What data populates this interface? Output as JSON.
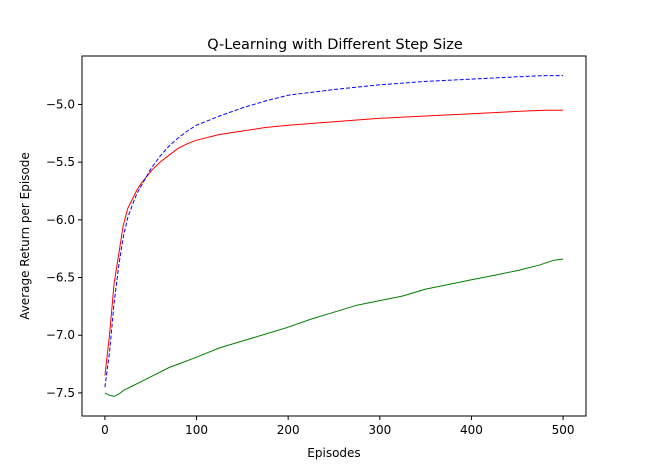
{
  "chart_data": {
    "type": "line",
    "title": "Q-Learning with Different Step Size",
    "xlabel": "Episodes",
    "ylabel": "Average Return per Episode",
    "xlim": [
      -25,
      525
    ],
    "ylim": [
      -7.7,
      -4.58
    ],
    "xticks": [
      0,
      100,
      200,
      300,
      400,
      500
    ],
    "yticks": [
      -7.5,
      -7.0,
      -6.5,
      -6.0,
      -5.5,
      -5.0
    ],
    "ytick_labels": [
      "−7.5",
      "−7.0",
      "−6.5",
      "−6.0",
      "−5.5",
      "−5.0"
    ],
    "grid": false,
    "legend": "none",
    "series": [
      {
        "color": "#ff0000",
        "style": "solid",
        "x": [
          0,
          5,
          10,
          15,
          20,
          25,
          30,
          35,
          40,
          50,
          60,
          70,
          80,
          90,
          100,
          125,
          150,
          175,
          200,
          250,
          300,
          350,
          400,
          450,
          480,
          500
        ],
        "y": [
          -7.35,
          -7.0,
          -6.55,
          -6.3,
          -6.05,
          -5.9,
          -5.82,
          -5.74,
          -5.68,
          -5.58,
          -5.5,
          -5.44,
          -5.38,
          -5.34,
          -5.31,
          -5.26,
          -5.23,
          -5.2,
          -5.18,
          -5.15,
          -5.12,
          -5.1,
          -5.08,
          -5.06,
          -5.05,
          -5.05
        ]
      },
      {
        "color": "#0000ff",
        "style": "dashed",
        "x": [
          0,
          5,
          10,
          15,
          20,
          25,
          30,
          35,
          40,
          50,
          60,
          70,
          80,
          90,
          100,
          125,
          150,
          175,
          200,
          250,
          300,
          350,
          400,
          450,
          480,
          500
        ],
        "y": [
          -7.45,
          -7.15,
          -6.72,
          -6.4,
          -6.15,
          -5.98,
          -5.87,
          -5.77,
          -5.7,
          -5.56,
          -5.45,
          -5.36,
          -5.29,
          -5.23,
          -5.18,
          -5.1,
          -5.03,
          -4.97,
          -4.92,
          -4.87,
          -4.83,
          -4.8,
          -4.78,
          -4.76,
          -4.75,
          -4.75
        ]
      },
      {
        "color": "#008000",
        "style": "solid",
        "x": [
          0,
          5,
          10,
          15,
          20,
          30,
          40,
          50,
          60,
          70,
          80,
          100,
          125,
          150,
          175,
          200,
          225,
          250,
          275,
          300,
          325,
          350,
          375,
          400,
          425,
          450,
          475,
          490,
          500
        ],
        "y": [
          -7.5,
          -7.52,
          -7.53,
          -7.51,
          -7.48,
          -7.44,
          -7.4,
          -7.36,
          -7.32,
          -7.28,
          -7.25,
          -7.19,
          -7.11,
          -7.05,
          -6.99,
          -6.93,
          -6.86,
          -6.8,
          -6.74,
          -6.7,
          -6.66,
          -6.6,
          -6.56,
          -6.52,
          -6.48,
          -6.44,
          -6.39,
          -6.35,
          -6.34
        ]
      }
    ]
  }
}
